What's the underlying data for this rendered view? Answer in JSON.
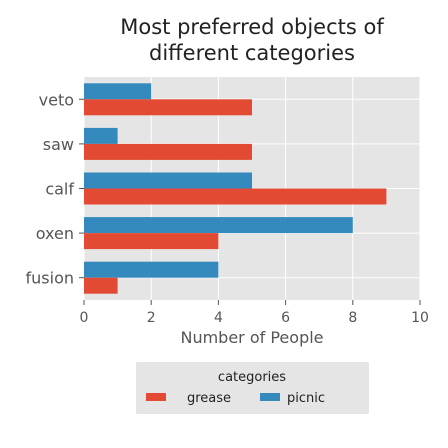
{
  "chart_data": {
    "type": "bar",
    "orientation": "horizontal",
    "title_lines": [
      "Most preferred objects of",
      "different categories"
    ],
    "xlabel": "Number of People",
    "ylabel": "",
    "categories": [
      "veto",
      "saw",
      "calf",
      "oxen",
      "fusion"
    ],
    "series": [
      {
        "name": "grease",
        "color": "#e24a33",
        "values": [
          5,
          5,
          9,
          4,
          1
        ]
      },
      {
        "name": "picnic",
        "color": "#348abd",
        "values": [
          2,
          1,
          5,
          8,
          4
        ]
      }
    ],
    "xlim": [
      0,
      10
    ],
    "xticks": [
      0,
      2,
      4,
      6,
      8,
      10
    ],
    "grid": true,
    "legend": {
      "title": "categories",
      "placement": "bottom-center"
    },
    "plot_background": "#e5e5e5"
  }
}
